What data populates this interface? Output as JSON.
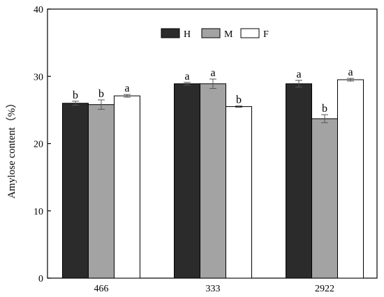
{
  "chart_data": {
    "type": "bar",
    "ylabel": "Amylose content（%）",
    "ylim": [
      0,
      40
    ],
    "yticks": [
      0,
      10,
      20,
      30,
      40
    ],
    "categories": [
      "466",
      "333",
      "2922"
    ],
    "legend_position": "top-center",
    "grid": false,
    "series": [
      {
        "name": "H",
        "color": "#2b2b2b",
        "values": [
          26.0,
          28.9,
          28.9
        ],
        "errors": [
          0.3,
          0.2,
          0.5
        ],
        "labels": [
          "b",
          "a",
          "a"
        ]
      },
      {
        "name": "M",
        "color": "#a3a3a3",
        "values": [
          25.8,
          28.9,
          23.7
        ],
        "errors": [
          0.7,
          0.7,
          0.6
        ],
        "labels": [
          "b",
          "a",
          "b"
        ]
      },
      {
        "name": "F",
        "color": "#ffffff",
        "values": [
          27.1,
          25.5,
          29.5
        ],
        "errors": [
          0.2,
          0.1,
          0.2
        ],
        "labels": [
          "a",
          "b",
          "a"
        ]
      }
    ]
  }
}
